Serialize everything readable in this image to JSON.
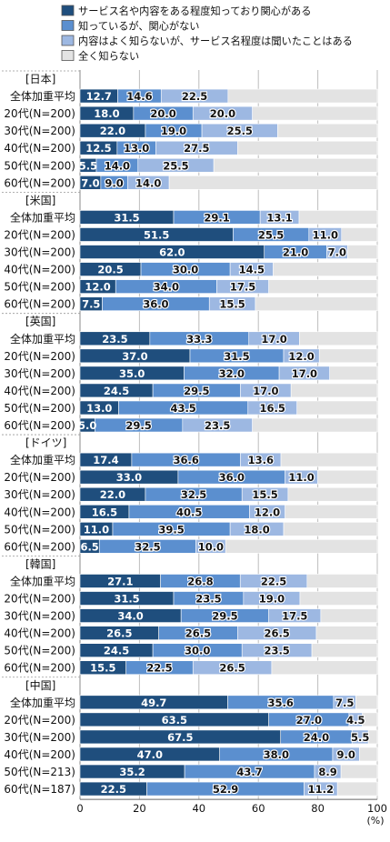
{
  "chart_data": {
    "type": "bar",
    "orientation": "horizontal",
    "stacked": true,
    "xlim": [
      0,
      100
    ],
    "x_ticks": [
      "0",
      "20",
      "40",
      "60",
      "80",
      "100"
    ],
    "unit": "(%)",
    "grid": "vertical",
    "legend_position": "top",
    "colors": [
      "#1f4e7d",
      "#5b8fcf",
      "#9db8e2",
      "#e3e3e3"
    ],
    "legend": [
      "サービス名や内容をある程度知っており関心がある",
      "知っているが、関心がない",
      "内容はよく知らないが、サービス名程度は聞いたことはある",
      "全く知らない"
    ],
    "groups": [
      {
        "name": "[日本]",
        "rows": [
          {
            "label": "全体加重平均",
            "values": [
              12.7,
              14.6,
              22.5
            ]
          },
          {
            "label": "20代(N=200)",
            "values": [
              18.0,
              20.0,
              20.0
            ]
          },
          {
            "label": "30代(N=200)",
            "values": [
              22.0,
              19.0,
              25.5
            ]
          },
          {
            "label": "40代(N=200)",
            "values": [
              12.5,
              13.0,
              27.5
            ]
          },
          {
            "label": "50代(N=200)",
            "values": [
              5.5,
              14.0,
              25.5
            ]
          },
          {
            "label": "60代(N=200)",
            "values": [
              7.0,
              9.0,
              14.0
            ]
          }
        ]
      },
      {
        "name": "[米国]",
        "rows": [
          {
            "label": "全体加重平均",
            "values": [
              31.5,
              29.1,
              13.1
            ]
          },
          {
            "label": "20代(N=200)",
            "values": [
              51.5,
              25.5,
              11.0
            ]
          },
          {
            "label": "30代(N=200)",
            "values": [
              62.0,
              21.0,
              7.0
            ]
          },
          {
            "label": "40代(N=200)",
            "values": [
              20.5,
              30.0,
              14.5
            ]
          },
          {
            "label": "50代(N=200)",
            "values": [
              12.0,
              34.0,
              17.5
            ]
          },
          {
            "label": "60代(N=200)",
            "values": [
              7.5,
              36.0,
              15.5
            ]
          }
        ]
      },
      {
        "name": "[英国]",
        "rows": [
          {
            "label": "全体加重平均",
            "values": [
              23.5,
              33.3,
              17.0
            ]
          },
          {
            "label": "20代(N=200)",
            "values": [
              37.0,
              31.5,
              12.0
            ]
          },
          {
            "label": "30代(N=200)",
            "values": [
              35.0,
              32.0,
              17.0
            ]
          },
          {
            "label": "40代(N=200)",
            "values": [
              24.5,
              29.5,
              17.0
            ]
          },
          {
            "label": "50代(N=200)",
            "values": [
              13.0,
              43.5,
              16.5
            ]
          },
          {
            "label": "60代(N=200)",
            "values": [
              5.0,
              29.5,
              23.5
            ]
          }
        ]
      },
      {
        "name": "[ドイツ]",
        "rows": [
          {
            "label": "全体加重平均",
            "values": [
              17.4,
              36.6,
              13.6
            ]
          },
          {
            "label": "20代(N=200)",
            "values": [
              33.0,
              36.0,
              11.0
            ]
          },
          {
            "label": "30代(N=200)",
            "values": [
              22.0,
              32.5,
              15.5
            ]
          },
          {
            "label": "40代(N=200)",
            "values": [
              16.5,
              40.5,
              12.0
            ]
          },
          {
            "label": "50代(N=200)",
            "values": [
              11.0,
              39.5,
              18.0
            ]
          },
          {
            "label": "60代(N=200)",
            "values": [
              6.5,
              32.5,
              10.0
            ]
          }
        ]
      },
      {
        "name": "[韓国]",
        "rows": [
          {
            "label": "全体加重平均",
            "values": [
              27.1,
              26.8,
              22.5
            ]
          },
          {
            "label": "20代(N=200)",
            "values": [
              31.5,
              23.5,
              19.0
            ]
          },
          {
            "label": "30代(N=200)",
            "values": [
              34.0,
              29.5,
              17.5
            ]
          },
          {
            "label": "40代(N=200)",
            "values": [
              26.5,
              26.5,
              26.5
            ]
          },
          {
            "label": "50代(N=200)",
            "values": [
              24.5,
              30.0,
              23.5
            ]
          },
          {
            "label": "60代(N=200)",
            "values": [
              15.5,
              22.5,
              26.5
            ]
          }
        ]
      },
      {
        "name": "[中国]",
        "rows": [
          {
            "label": "全体加重平均",
            "values": [
              49.7,
              35.6,
              7.5
            ]
          },
          {
            "label": "20代(N=200)",
            "values": [
              63.5,
              27.0,
              4.5
            ]
          },
          {
            "label": "30代(N=200)",
            "values": [
              67.5,
              24.0,
              5.5
            ]
          },
          {
            "label": "40代(N=200)",
            "values": [
              47.0,
              38.0,
              9.0
            ]
          },
          {
            "label": "50代(N=213)",
            "values": [
              35.2,
              43.7,
              8.9
            ]
          },
          {
            "label": "60代(N=187)",
            "values": [
              22.5,
              52.9,
              11.2
            ]
          }
        ]
      }
    ]
  }
}
